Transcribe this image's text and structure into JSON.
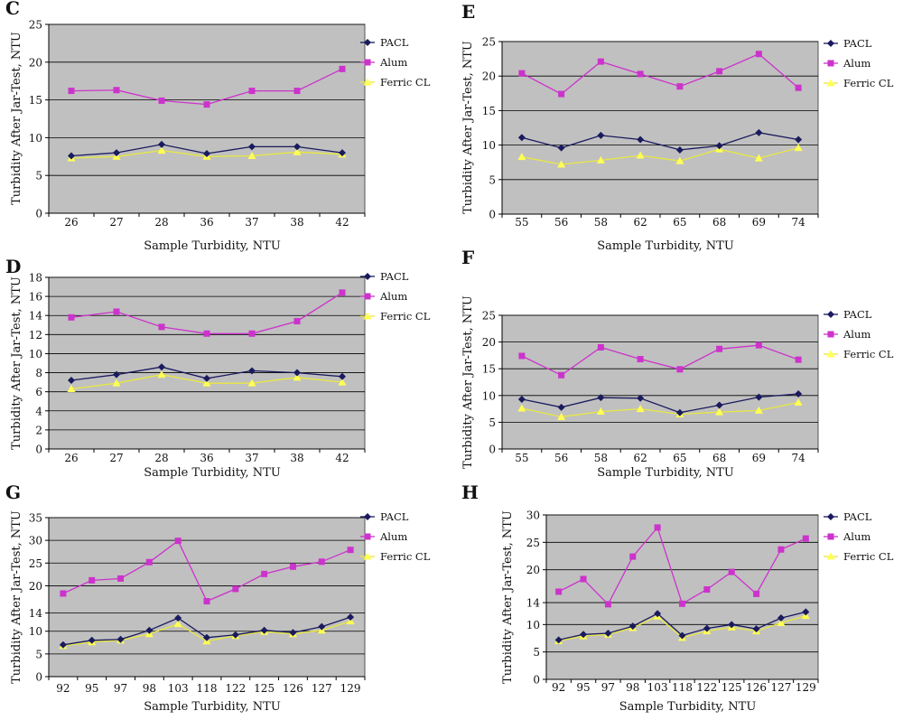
{
  "colors": {
    "plot_bg": "#c0c0c0",
    "grid": "#000000",
    "PACL": "#1a1a5e",
    "Alum": "#cc33cc",
    "Ferric CL": "#ffff55"
  },
  "chart_data": [
    {
      "type": "line",
      "panel": "C",
      "categories": [
        "26",
        "27",
        "28",
        "36",
        "37",
        "38",
        "42"
      ],
      "ylim": [
        0,
        25
      ],
      "yticks": [
        0,
        5,
        10,
        15,
        20,
        25
      ],
      "xlabel": "Sample Turbidity, NTU",
      "ylabel": "Turbidity After Jar-Test, NTU",
      "grid": true,
      "legend": "right",
      "series": [
        {
          "name": "PACL",
          "values": [
            7.6,
            8.0,
            9.1,
            7.9,
            8.8,
            8.8,
            8.0
          ]
        },
        {
          "name": "Alum",
          "values": [
            16.2,
            16.3,
            14.9,
            14.4,
            16.2,
            16.2,
            19.1
          ]
        },
        {
          "name": "Ferric CL",
          "values": [
            7.3,
            7.5,
            8.3,
            7.5,
            7.6,
            8.1,
            7.8
          ]
        }
      ]
    },
    {
      "type": "line",
      "panel": "E",
      "categories": [
        "55",
        "56",
        "58",
        "62",
        "65",
        "68",
        "69",
        "74"
      ],
      "ylim": [
        0,
        25
      ],
      "yticks": [
        0,
        5,
        10,
        15,
        20,
        25
      ],
      "xlabel": "Sample Turbidity, NTU",
      "ylabel": "Turbidity After Jar-Test, NTU",
      "grid": true,
      "legend": "right",
      "series": [
        {
          "name": "PACL",
          "values": [
            11.1,
            9.6,
            11.4,
            10.8,
            9.3,
            9.9,
            11.8,
            10.8
          ]
        },
        {
          "name": "Alum",
          "values": [
            20.4,
            17.4,
            22.1,
            20.3,
            18.5,
            20.7,
            23.2,
            18.3
          ]
        },
        {
          "name": "Ferric CL",
          "values": [
            8.3,
            7.2,
            7.8,
            8.5,
            7.7,
            9.4,
            8.1,
            9.6
          ]
        }
      ]
    },
    {
      "type": "line",
      "panel": "D",
      "categories": [
        "26",
        "27",
        "28",
        "36",
        "37",
        "38",
        "42"
      ],
      "ylim": [
        0,
        18
      ],
      "yticks": [
        0,
        2,
        4,
        6,
        8,
        10,
        12,
        14,
        16,
        18
      ],
      "xlabel": "Sample Turbidity, NTU",
      "ylabel": "Turbidity After Jar-Test, NTU",
      "grid": true,
      "legend": "right",
      "series": [
        {
          "name": "PACL",
          "values": [
            7.2,
            7.8,
            8.6,
            7.4,
            8.2,
            8.0,
            7.6
          ]
        },
        {
          "name": "Alum",
          "values": [
            13.8,
            14.4,
            12.8,
            12.1,
            12.1,
            13.4,
            16.4
          ]
        },
        {
          "name": "Ferric CL",
          "values": [
            6.3,
            6.9,
            7.8,
            6.9,
            6.9,
            7.5,
            7.0
          ]
        }
      ]
    },
    {
      "type": "line",
      "panel": "F",
      "categories": [
        "55",
        "56",
        "58",
        "62",
        "65",
        "68",
        "69",
        "74"
      ],
      "ylim": [
        0,
        25
      ],
      "yticks": [
        0,
        5,
        10,
        15,
        20,
        25
      ],
      "xlabel": "Sample Turbidity, NTU",
      "ylabel": "Turbidity After Jar-Test, NTU",
      "grid": true,
      "legend": "right",
      "series": [
        {
          "name": "PACL",
          "values": [
            9.3,
            7.8,
            9.6,
            9.5,
            6.8,
            8.2,
            9.7,
            10.3
          ]
        },
        {
          "name": "Alum",
          "values": [
            17.4,
            13.8,
            19.0,
            16.8,
            14.9,
            18.7,
            19.4,
            16.7
          ]
        },
        {
          "name": "Ferric CL",
          "values": [
            7.6,
            6.0,
            7.0,
            7.5,
            6.5,
            6.9,
            7.2,
            8.7
          ]
        }
      ]
    },
    {
      "type": "line",
      "panel": "G",
      "categories": [
        "92",
        "95",
        "97",
        "98",
        "103",
        "118",
        "122",
        "125",
        "126",
        "127",
        "129"
      ],
      "ylim": [
        0,
        35
      ],
      "yticks": [
        0,
        5,
        10,
        14,
        20,
        25,
        30,
        35
      ],
      "xlabel": "Sample Turbidity, NTU",
      "ylabel": "Turbidity After Jar-Test, NTU",
      "grid": true,
      "legend": "right",
      "series": [
        {
          "name": "PACL",
          "values": [
            7.0,
            8.0,
            8.2,
            10.2,
            12.9,
            8.6,
            9.2,
            10.2,
            9.7,
            11.0,
            13.1
          ]
        },
        {
          "name": "Alum",
          "values": [
            18.3,
            21.2,
            21.6,
            25.2,
            29.9,
            16.6,
            19.3,
            22.6,
            24.2,
            25.3,
            27.9
          ]
        },
        {
          "name": "Ferric CL",
          "values": [
            6.8,
            7.6,
            8.0,
            9.4,
            11.6,
            7.8,
            9.0,
            9.9,
            9.4,
            10.2,
            12.2
          ]
        }
      ]
    },
    {
      "type": "line",
      "panel": "H",
      "categories": [
        "92",
        "95",
        "97",
        "98",
        "103",
        "118",
        "122",
        "125",
        "126",
        "127",
        "129"
      ],
      "ylim": [
        0,
        30
      ],
      "yticks": [
        0,
        5,
        10,
        14,
        20,
        25,
        30
      ],
      "xlabel": "Sample Turbidity, NTU",
      "ylabel": "Turbidity After Jar-Test, NTU",
      "grid": true,
      "legend": "right",
      "series": [
        {
          "name": "PACL",
          "values": [
            7.2,
            8.2,
            8.4,
            9.7,
            12.0,
            8.0,
            9.3,
            10.0,
            9.2,
            11.2,
            12.3
          ]
        },
        {
          "name": "Alum",
          "values": [
            16.0,
            18.3,
            13.7,
            22.4,
            27.7,
            13.8,
            16.4,
            19.6,
            15.6,
            23.7,
            25.7
          ]
        },
        {
          "name": "Ferric CL",
          "values": [
            7.0,
            7.9,
            8.2,
            9.4,
            11.5,
            7.6,
            8.8,
            9.5,
            8.8,
            10.3,
            11.6
          ]
        }
      ]
    }
  ]
}
